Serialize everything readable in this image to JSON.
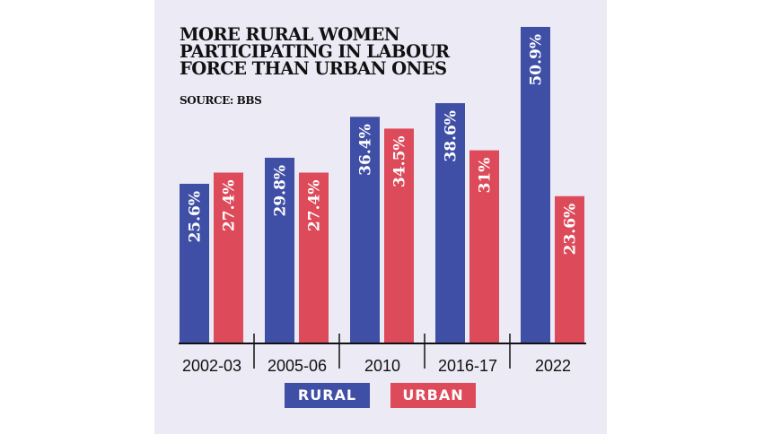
{
  "chart_data": {
    "type": "bar",
    "title": "MORE RURAL WOMEN PARTICIPATING IN LABOUR FORCE THAN URBAN ONES",
    "source": "SOURCE: BBS",
    "categories": [
      "2002-03",
      "2005-06",
      "2010",
      "2016-17",
      "2022"
    ],
    "series": [
      {
        "name": "RURAL",
        "color": "#3f4fa6",
        "values": [
          25.6,
          29.8,
          36.4,
          38.6,
          50.9
        ],
        "labels": [
          "25.6%",
          "29.8%",
          "36.4%",
          "38.6%",
          "50.9%"
        ]
      },
      {
        "name": "URBAN",
        "color": "#dd4a5a",
        "values": [
          27.4,
          27.4,
          34.5,
          31,
          23.6
        ],
        "labels": [
          "27.4%",
          "27.4%",
          "34.5%",
          "31%",
          "23.6%"
        ]
      }
    ],
    "ylim": [
      0,
      51
    ],
    "grid": false,
    "legend": "bottom"
  }
}
